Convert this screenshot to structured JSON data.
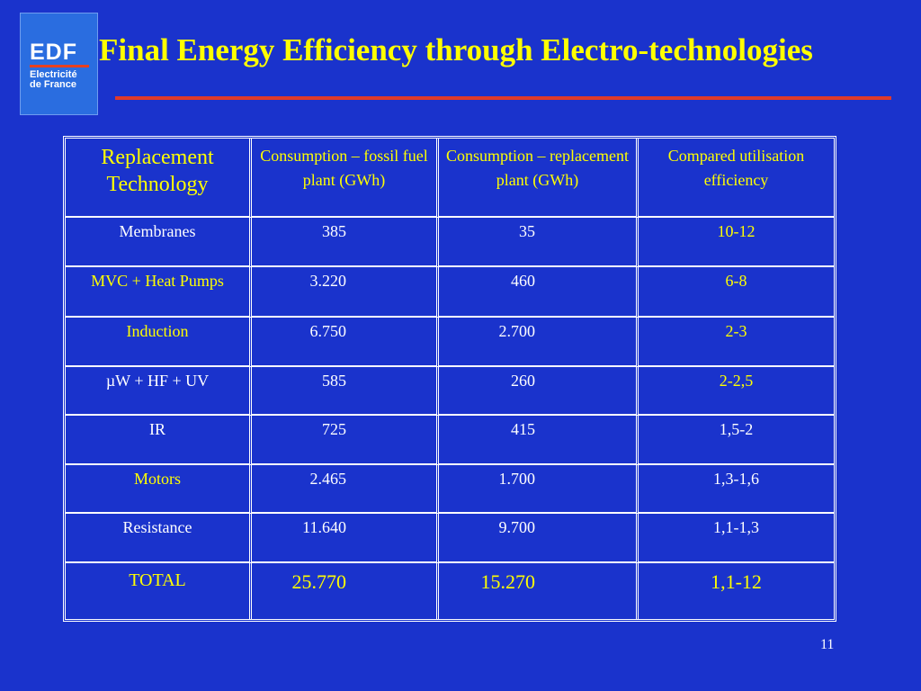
{
  "logo": {
    "mark": "EDF",
    "sub_line1": "Electricité",
    "sub_line2": "de France"
  },
  "title": "Final Energy Efficiency through Electro-technologies",
  "colors": {
    "background": "#1a33cc",
    "title": "#ffff00",
    "rule": "#e03a2a",
    "white_text": "#ffffff",
    "yellow_text": "#ffff00"
  },
  "table": {
    "headers": [
      "Replacement Technology",
      "Consumption – fossil fuel plant (GWh)",
      "Consumption – replacement plant (GWh)",
      "Compared utilisation efficiency"
    ],
    "rows": [
      {
        "technology": "Membranes",
        "fossil": "385",
        "replacement": "35",
        "efficiency": "10-12"
      },
      {
        "technology": "MVC + Heat Pumps",
        "fossil": "3.220",
        "replacement": "460",
        "efficiency": "6-8"
      },
      {
        "technology": "Induction",
        "fossil": "6.750",
        "replacement": "2.700",
        "efficiency": "2-3"
      },
      {
        "technology": "µW + HF + UV",
        "fossil": "585",
        "replacement": "260",
        "efficiency": "2-2,5"
      },
      {
        "technology": "IR",
        "fossil": "725",
        "replacement": "415",
        "efficiency": "1,5-2"
      },
      {
        "technology": "Motors",
        "fossil": "2.465",
        "replacement": "1.700",
        "efficiency": "1,3-1,6"
      },
      {
        "technology": "Resistance",
        "fossil": "11.640",
        "replacement": "9.700",
        "efficiency": "1,1-1,3"
      }
    ],
    "total": {
      "technology": "TOTAL",
      "fossil": "25.770",
      "replacement": "15.270",
      "efficiency": "1,1-12"
    }
  },
  "page_number": "11"
}
